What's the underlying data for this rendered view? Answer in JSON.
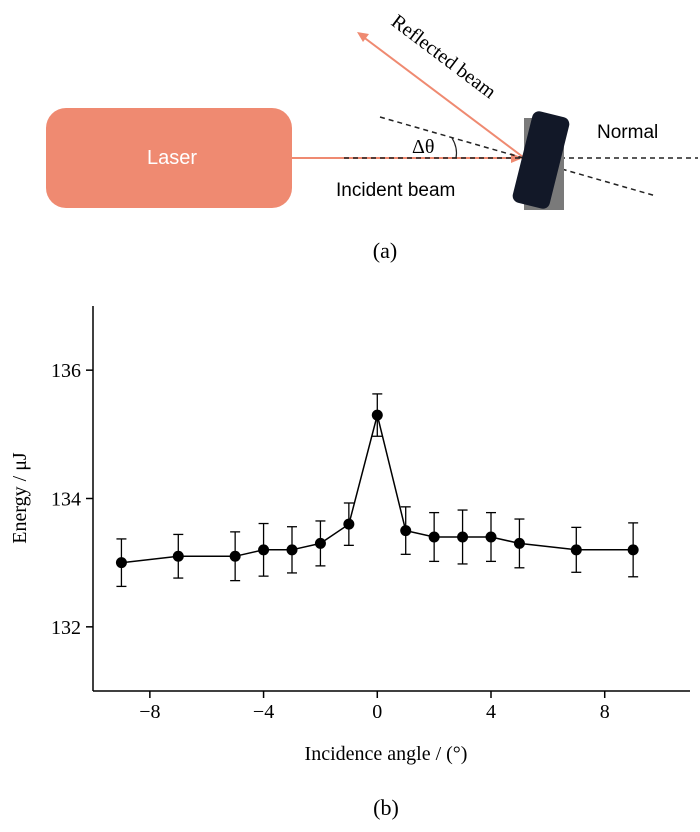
{
  "panel_a": {
    "laser_label": "Laser",
    "reflected_label": "Reflected beam",
    "incident_label": "Incident beam",
    "normal_label": "Normal",
    "angle_label": "Δθ",
    "caption": "(a)",
    "colors": {
      "laser_box": "#ef8a71",
      "beam": "#ef8a71",
      "mirror": "#121828",
      "mirror_mount": "#7a7a7a"
    }
  },
  "panel_b": {
    "caption": "(b)"
  },
  "chart_data": {
    "type": "line",
    "title": "",
    "xlabel": "Incidence angle / (°)",
    "ylabel": "Energy / μJ",
    "xlim": [
      -10,
      11
    ],
    "ylim": [
      131,
      137
    ],
    "xticks": [
      -8,
      -4,
      0,
      4,
      8
    ],
    "xtick_labels": [
      "−8",
      "−4",
      "0",
      "4",
      "8"
    ],
    "yticks": [
      132,
      134,
      136
    ],
    "ytick_labels": [
      "132",
      "134",
      "136"
    ],
    "grid": false,
    "series": [
      {
        "x": [
          -9,
          -7,
          -5,
          -4,
          -3,
          -2,
          -1,
          0,
          1,
          2,
          3,
          4,
          5,
          7,
          9
        ],
        "y": [
          133.0,
          133.1,
          133.1,
          133.2,
          133.2,
          133.3,
          133.6,
          135.3,
          133.5,
          133.4,
          133.4,
          133.4,
          133.3,
          133.2,
          133.2
        ],
        "error": [
          0.37,
          0.34,
          0.38,
          0.41,
          0.36,
          0.35,
          0.33,
          0.33,
          0.37,
          0.38,
          0.42,
          0.38,
          0.38,
          0.35,
          0.42
        ],
        "color": "#000000"
      }
    ]
  }
}
